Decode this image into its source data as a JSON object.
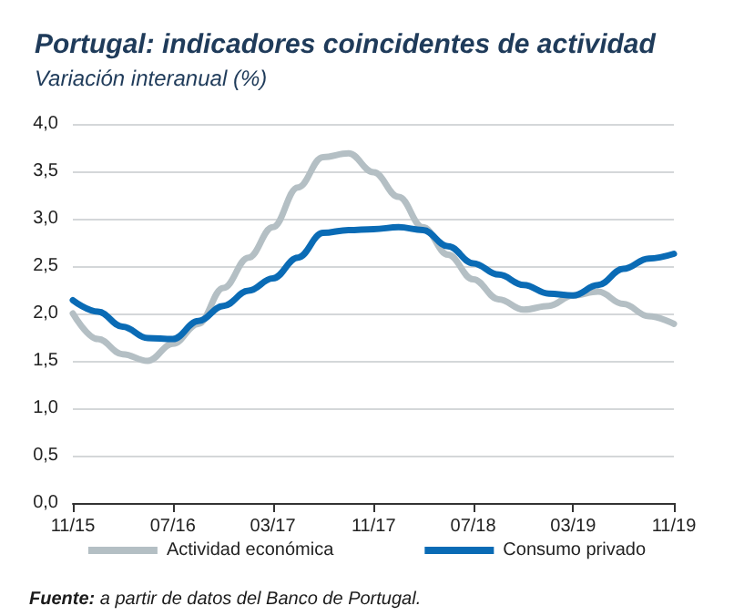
{
  "chart_data": {
    "type": "line",
    "title": "Portugal: indicadores coincidentes de actividad",
    "subtitle": "Variación interanual (%)",
    "annotations": [
      "Fuente: a partir de datos del Banco de Portugal."
    ],
    "x": [
      "2015-11",
      "2016-01",
      "2016-03",
      "2016-05",
      "2016-07",
      "2016-09",
      "2016-11",
      "2017-01",
      "2017-03",
      "2017-05",
      "2017-07",
      "2017-09",
      "2017-11",
      "2018-01",
      "2018-03",
      "2018-05",
      "2018-07",
      "2018-09",
      "2018-11",
      "2019-01",
      "2019-03",
      "2019-05",
      "2019-07",
      "2019-09",
      "2019-11"
    ],
    "series": [
      {
        "name": "Actividad económica",
        "color": "#b4bfc4",
        "values": [
          2.0,
          1.73,
          1.57,
          1.5,
          1.68,
          1.89,
          2.27,
          2.59,
          2.91,
          3.33,
          3.65,
          3.69,
          3.49,
          3.23,
          2.91,
          2.62,
          2.36,
          2.15,
          2.04,
          2.08,
          2.19,
          2.23,
          2.1,
          1.97,
          1.89
        ]
      },
      {
        "name": "Consumo privado",
        "color": "#0a6bb5",
        "values": [
          2.14,
          2.02,
          1.86,
          1.74,
          1.73,
          1.92,
          2.08,
          2.24,
          2.37,
          2.59,
          2.85,
          2.88,
          2.89,
          2.91,
          2.88,
          2.71,
          2.53,
          2.41,
          2.3,
          2.21,
          2.19,
          2.3,
          2.47,
          2.58,
          2.63
        ]
      }
    ],
    "xlim": [
      "2015-11",
      "2019-11"
    ],
    "xticks": [
      {
        "value": "2015-11",
        "label": "11/15"
      },
      {
        "value": "2016-07",
        "label": "07/16"
      },
      {
        "value": "2017-03",
        "label": "03/17"
      },
      {
        "value": "2017-11",
        "label": "11/17"
      },
      {
        "value": "2018-07",
        "label": "07/18"
      },
      {
        "value": "2019-03",
        "label": "03/19"
      },
      {
        "value": "2019-11",
        "label": "11/19"
      }
    ],
    "ylim": [
      0,
      4
    ],
    "yticks": [
      {
        "value": 0,
        "label": "0,0"
      },
      {
        "value": 0.5,
        "label": "0,5"
      },
      {
        "value": 1,
        "label": "1,0"
      },
      {
        "value": 1.5,
        "label": "1,5"
      },
      {
        "value": 2,
        "label": "2,0"
      },
      {
        "value": 2.5,
        "label": "2,5"
      },
      {
        "value": 3,
        "label": "3,0"
      },
      {
        "value": 3.5,
        "label": "3,5"
      },
      {
        "value": 4,
        "label": "4,0"
      }
    ],
    "grid": "y",
    "legend": "bottom",
    "marker": "none",
    "line_style": "solid"
  }
}
